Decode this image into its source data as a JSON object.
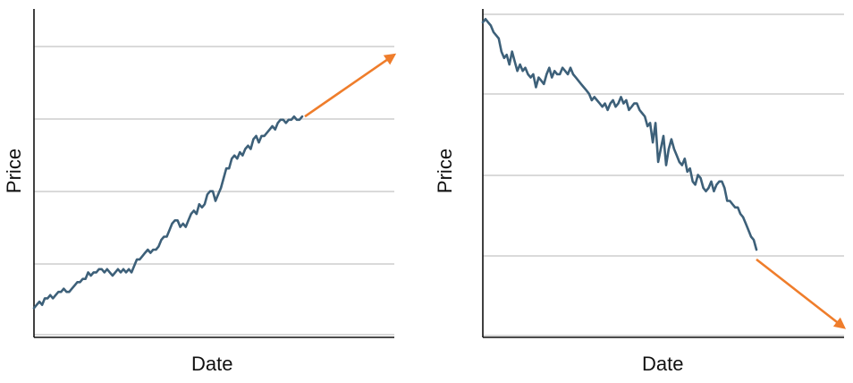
{
  "colors": {
    "series": "#3d6079",
    "trend": "#ef7d2b",
    "grid": "#c4c4c4",
    "axis": "#111111"
  },
  "chart_data": [
    {
      "type": "line",
      "title": "",
      "xlabel": "Date",
      "ylabel": "Price",
      "grid": true,
      "ylim": [
        0,
        100
      ],
      "series": [
        {
          "values": [
            9,
            10,
            11,
            10,
            12,
            12,
            13,
            12,
            13,
            14,
            14,
            15,
            14,
            14,
            15,
            16,
            17,
            17,
            18,
            18,
            20,
            19,
            20,
            20,
            21,
            21,
            20,
            21,
            20,
            19,
            20,
            21,
            20,
            21,
            20,
            21,
            20,
            22,
            24,
            24,
            25,
            26,
            27,
            26,
            27,
            27,
            28,
            30,
            31,
            31,
            33,
            35,
            36,
            36,
            34,
            35,
            34,
            36,
            38,
            39,
            38,
            41,
            40,
            41,
            44,
            45,
            45,
            42,
            44,
            46,
            49,
            52,
            52,
            55,
            56,
            55,
            57,
            56,
            58,
            59,
            58,
            61,
            62,
            60,
            62,
            62,
            63,
            64,
            65,
            64,
            66,
            67,
            67,
            66,
            67,
            67,
            68,
            67,
            67,
            68
          ]
        }
      ],
      "trend": {
        "from": [
          100,
          68
        ],
        "to": [
          133,
          87
        ]
      }
    },
    {
      "type": "line",
      "title": "",
      "xlabel": "Date",
      "ylabel": "Price",
      "grid": true,
      "ylim": [
        0,
        100
      ],
      "series": [
        {
          "values": [
            97,
            98,
            97,
            96,
            94,
            93,
            92,
            88,
            86,
            87,
            84,
            88,
            85,
            82,
            84,
            82,
            83,
            81,
            80,
            81,
            77,
            80,
            79,
            78,
            81,
            83,
            80,
            82,
            81,
            81,
            83,
            82,
            81,
            83,
            81,
            80,
            79,
            78,
            77,
            76,
            75,
            73,
            74,
            73,
            72,
            71,
            72,
            70,
            72,
            73,
            71,
            72,
            74,
            72,
            73,
            70,
            71,
            72,
            72,
            70,
            69,
            68,
            65,
            66,
            60,
            66,
            54,
            58,
            62,
            53,
            58,
            61,
            58,
            56,
            54,
            53,
            55,
            51,
            52,
            48,
            47,
            50,
            49,
            46,
            45,
            46,
            48,
            45,
            47,
            48,
            48,
            46,
            42,
            42,
            41,
            40,
            40,
            38,
            37,
            35,
            33,
            31,
            30,
            27
          ]
        }
      ],
      "trend": {
        "from": [
          103,
          24
        ],
        "to": [
          136,
          3
        ]
      }
    }
  ]
}
